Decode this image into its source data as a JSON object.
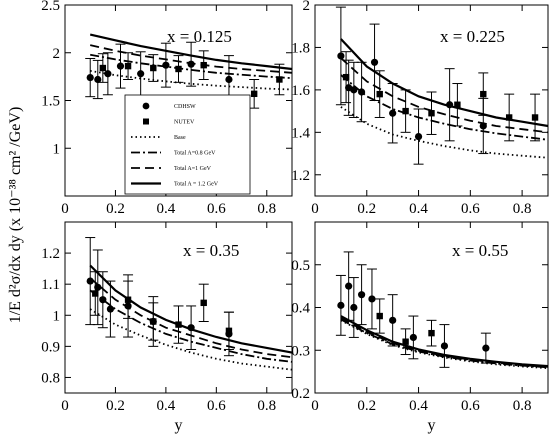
{
  "chart_data": {
    "type": "scatter",
    "ylabel": "1/E d²σ/dx dy (x 10⁻³⁸ cm² /GeV)",
    "xlabel": "y",
    "legend": {
      "placement": "inside-top-left-panel",
      "entries": [
        "CDHSW",
        "NUTEV",
        "Base",
        "Total A=0.8 GeV",
        "Total A=1 GeV",
        "Total A = 1.2 GeV"
      ]
    },
    "panels": [
      {
        "annotation": "x = 0.125",
        "xlim": [
          0,
          0.9
        ],
        "ylim": [
          0.5,
          2.5
        ],
        "xticks": [
          0,
          0.2,
          0.4,
          0.6,
          0.8
        ],
        "yticks": [
          1,
          1.5,
          2,
          2.5
        ],
        "show_xlabel": false,
        "series": [
          {
            "name": "CDHSW",
            "marker": "circle",
            "points": [
              [
                0.1,
                1.74,
                0.2
              ],
              [
                0.13,
                1.72,
                0.2
              ],
              [
                0.17,
                1.78,
                0.22
              ],
              [
                0.22,
                1.86,
                0.23
              ],
              [
                0.3,
                1.78,
                0.23
              ],
              [
                0.4,
                1.87,
                0.23
              ],
              [
                0.5,
                1.88,
                0.23
              ],
              [
                0.65,
                1.72,
                0.25
              ]
            ]
          },
          {
            "name": "NUTEV",
            "marker": "square",
            "points": [
              [
                0.15,
                1.84,
                0.15
              ],
              [
                0.25,
                1.86,
                0.14
              ],
              [
                0.35,
                1.84,
                0.14
              ],
              [
                0.45,
                1.83,
                0.14
              ],
              [
                0.55,
                1.87,
                0.15
              ],
              [
                0.75,
                1.57,
                0.15
              ],
              [
                0.85,
                1.72,
                0.16
              ]
            ]
          },
          {
            "name": "Base",
            "style": "dotted",
            "x": [
              0.1,
              0.2,
              0.3,
              0.4,
              0.5,
              0.6,
              0.7,
              0.8,
              0.9
            ],
            "y": [
              1.81,
              1.765,
              1.73,
              1.7,
              1.675,
              1.655,
              1.64,
              1.625,
              1.615
            ]
          },
          {
            "name": "Total A=0.8 GeV",
            "style": "dash-dot",
            "x": [
              0.1,
              0.2,
              0.3,
              0.4,
              0.5,
              0.6,
              0.7,
              0.8,
              0.9
            ],
            "y": [
              1.98,
              1.93,
              1.89,
              1.855,
              1.82,
              1.79,
              1.77,
              1.75,
              1.735
            ]
          },
          {
            "name": "Total A=1 GeV",
            "style": "dashed",
            "x": [
              0.1,
              0.2,
              0.3,
              0.4,
              0.5,
              0.6,
              0.7,
              0.8,
              0.9
            ],
            "y": [
              2.08,
              2.02,
              1.97,
              1.93,
              1.89,
              1.855,
              1.83,
              1.81,
              1.79
            ]
          },
          {
            "name": "Total A = 1.2 GeV",
            "style": "solid",
            "x": [
              0.1,
              0.2,
              0.3,
              0.4,
              0.5,
              0.6,
              0.7,
              0.8,
              0.9
            ],
            "y": [
              2.19,
              2.13,
              2.07,
              2.02,
              1.97,
              1.925,
              1.89,
              1.86,
              1.83
            ]
          }
        ]
      },
      {
        "annotation": "x = 0.225",
        "xlim": [
          0,
          0.9
        ],
        "ylim": [
          1.1,
          2.0
        ],
        "xticks": [
          0,
          0.2,
          0.4,
          0.6,
          0.8
        ],
        "yticks": [
          1.2,
          1.4,
          1.6,
          1.8,
          2
        ],
        "show_xlabel": false,
        "series": [
          {
            "name": "CDHSW",
            "marker": "circle",
            "points": [
              [
                0.1,
                1.76,
                0.23
              ],
              [
                0.13,
                1.61,
                0.13
              ],
              [
                0.15,
                1.6,
                0.13
              ],
              [
                0.18,
                1.59,
                0.14
              ],
              [
                0.23,
                1.73,
                0.18
              ],
              [
                0.3,
                1.49,
                0.14
              ],
              [
                0.4,
                1.38,
                0.13
              ],
              [
                0.52,
                1.53,
                0.17
              ],
              [
                0.65,
                1.43,
                0.13
              ]
            ]
          },
          {
            "name": "NUTEV",
            "marker": "square",
            "points": [
              [
                0.12,
                1.66,
                0.12
              ],
              [
                0.25,
                1.58,
                0.11
              ],
              [
                0.35,
                1.5,
                0.1
              ],
              [
                0.45,
                1.49,
                0.1
              ],
              [
                0.55,
                1.53,
                0.1
              ],
              [
                0.65,
                1.58,
                0.1
              ],
              [
                0.75,
                1.47,
                0.11
              ],
              [
                0.85,
                1.47,
                0.11
              ]
            ]
          },
          {
            "name": "Base",
            "style": "dotted",
            "x": [
              0.1,
              0.2,
              0.3,
              0.4,
              0.5,
              0.6,
              0.7,
              0.8,
              0.9
            ],
            "y": [
              1.52,
              1.44,
              1.39,
              1.36,
              1.335,
              1.315,
              1.3,
              1.29,
              1.28
            ]
          },
          {
            "name": "Total A=0.8 GeV",
            "style": "dash-dot",
            "x": [
              0.1,
              0.2,
              0.3,
              0.4,
              0.5,
              0.6,
              0.7,
              0.8,
              0.9
            ],
            "y": [
              1.67,
              1.57,
              1.51,
              1.47,
              1.44,
              1.415,
              1.395,
              1.38,
              1.365
            ]
          },
          {
            "name": "Total A=1 GeV",
            "style": "dashed",
            "x": [
              0.1,
              0.2,
              0.3,
              0.4,
              0.5,
              0.6,
              0.7,
              0.8,
              0.9
            ],
            "y": [
              1.75,
              1.64,
              1.57,
              1.52,
              1.485,
              1.455,
              1.43,
              1.415,
              1.4
            ]
          },
          {
            "name": "Total A = 1.2 GeV",
            "style": "solid",
            "x": [
              0.1,
              0.2,
              0.3,
              0.4,
              0.5,
              0.6,
              0.7,
              0.8,
              0.9
            ],
            "y": [
              1.84,
              1.71,
              1.63,
              1.57,
              1.53,
              1.5,
              1.47,
              1.45,
              1.43
            ]
          }
        ]
      },
      {
        "annotation": "x = 0.35",
        "xlim": [
          0,
          0.9
        ],
        "ylim": [
          0.75,
          1.3
        ],
        "xticks": [
          0,
          0.2,
          0.4,
          0.6,
          0.8
        ],
        "yticks": [
          0.8,
          0.9,
          1,
          1.1,
          1.2
        ],
        "show_xlabel": true,
        "series": [
          {
            "name": "CDHSW",
            "marker": "circle",
            "points": [
              [
                0.1,
                1.11,
                0.14
              ],
              [
                0.13,
                1.09,
                0.12
              ],
              [
                0.15,
                1.05,
                0.09
              ],
              [
                0.18,
                1.02,
                0.09
              ],
              [
                0.25,
                1.03,
                0.1
              ],
              [
                0.35,
                0.98,
                0.08
              ],
              [
                0.5,
                0.96,
                0.07
              ],
              [
                0.65,
                0.94,
                0.07
              ]
            ]
          },
          {
            "name": "NUTEV",
            "marker": "square",
            "points": [
              [
                0.12,
                1.07,
                0.07
              ],
              [
                0.25,
                1.05,
                0.06
              ],
              [
                0.35,
                0.98,
                0.06
              ],
              [
                0.45,
                0.97,
                0.06
              ],
              [
                0.55,
                1.04,
                0.06
              ],
              [
                0.65,
                0.95,
                0.06
              ]
            ]
          },
          {
            "name": "Base",
            "style": "dotted",
            "x": [
              0.1,
              0.2,
              0.3,
              0.4,
              0.5,
              0.6,
              0.7,
              0.8,
              0.9
            ],
            "y": [
              1.02,
              0.97,
              0.935,
              0.905,
              0.88,
              0.86,
              0.845,
              0.835,
              0.825
            ]
          },
          {
            "name": "Total A=0.8 GeV",
            "style": "dash-dot",
            "x": [
              0.1,
              0.2,
              0.3,
              0.4,
              0.5,
              0.6,
              0.7,
              0.8,
              0.9
            ],
            "y": [
              1.08,
              1.02,
              0.975,
              0.94,
              0.915,
              0.895,
              0.875,
              0.86,
              0.85
            ]
          },
          {
            "name": "Total A=1 GeV",
            "style": "dashed",
            "x": [
              0.1,
              0.2,
              0.3,
              0.4,
              0.5,
              0.6,
              0.7,
              0.8,
              0.9
            ],
            "y": [
              1.12,
              1.05,
              1.0,
              0.96,
              0.935,
              0.91,
              0.89,
              0.875,
              0.865
            ]
          },
          {
            "name": "Total A = 1.2 GeV",
            "style": "solid",
            "x": [
              0.1,
              0.2,
              0.3,
              0.4,
              0.5,
              0.6,
              0.7,
              0.8,
              0.9
            ],
            "y": [
              1.16,
              1.08,
              1.025,
              0.985,
              0.955,
              0.93,
              0.91,
              0.895,
              0.88
            ]
          }
        ]
      },
      {
        "annotation": "x = 0.55",
        "xlim": [
          0,
          0.9
        ],
        "ylim": [
          0.2,
          0.6
        ],
        "xticks": [
          0,
          0.2,
          0.4,
          0.6,
          0.8
        ],
        "yticks": [
          0.2,
          0.3,
          0.4,
          0.5
        ],
        "show_xlabel": true,
        "series": [
          {
            "name": "CDHSW",
            "marker": "circle",
            "points": [
              [
                0.1,
                0.405,
                0.07
              ],
              [
                0.13,
                0.45,
                0.08
              ],
              [
                0.15,
                0.4,
                0.07
              ],
              [
                0.18,
                0.43,
                0.07
              ],
              [
                0.22,
                0.42,
                0.07
              ],
              [
                0.3,
                0.37,
                0.06
              ],
              [
                0.38,
                0.33,
                0.05
              ],
              [
                0.5,
                0.31,
                0.05
              ],
              [
                0.66,
                0.305,
                0.035
              ]
            ]
          },
          {
            "name": "NUTEV",
            "marker": "square",
            "points": [
              [
                0.25,
                0.38,
                0.04
              ],
              [
                0.35,
                0.32,
                0.03
              ],
              [
                0.45,
                0.34,
                0.03
              ]
            ]
          },
          {
            "name": "Base",
            "style": "dotted",
            "x": [
              0.1,
              0.2,
              0.3,
              0.4,
              0.5,
              0.6,
              0.7,
              0.8,
              0.9
            ],
            "y": [
              0.37,
              0.338,
              0.312,
              0.295,
              0.283,
              0.274,
              0.267,
              0.262,
              0.258
            ]
          },
          {
            "name": "Total A=0.8 GeV",
            "style": "dash-dot",
            "x": [
              0.1,
              0.2,
              0.3,
              0.4,
              0.5,
              0.6,
              0.7,
              0.8,
              0.9
            ],
            "y": [
              0.372,
              0.34,
              0.314,
              0.297,
              0.285,
              0.276,
              0.269,
              0.264,
              0.26
            ]
          },
          {
            "name": "Total A=1 GeV",
            "style": "dashed",
            "x": [
              0.1,
              0.2,
              0.3,
              0.4,
              0.5,
              0.6,
              0.7,
              0.8,
              0.9
            ],
            "y": [
              0.375,
              0.343,
              0.317,
              0.299,
              0.287,
              0.278,
              0.271,
              0.265,
              0.261
            ]
          },
          {
            "name": "Total A = 1.2 GeV",
            "style": "solid",
            "x": [
              0.1,
              0.2,
              0.3,
              0.4,
              0.5,
              0.6,
              0.7,
              0.8,
              0.9
            ],
            "y": [
              0.38,
              0.347,
              0.32,
              0.302,
              0.289,
              0.28,
              0.273,
              0.267,
              0.263
            ]
          }
        ]
      }
    ]
  }
}
